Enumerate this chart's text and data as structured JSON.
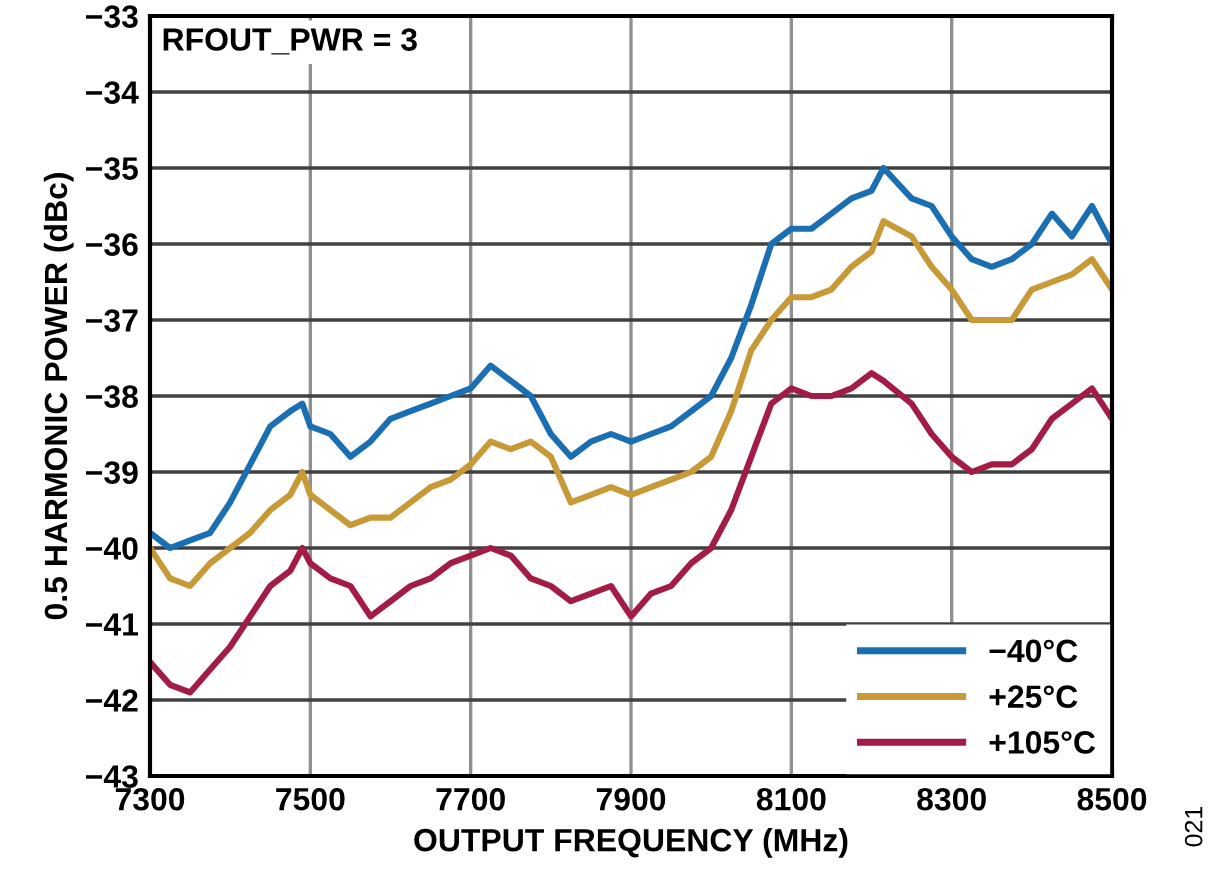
{
  "chart_data": {
    "type": "line",
    "x": [
      7300,
      7325,
      7350,
      7375,
      7400,
      7425,
      7450,
      7475,
      7490,
      7500,
      7525,
      7550,
      7575,
      7600,
      7625,
      7650,
      7675,
      7700,
      7725,
      7750,
      7775,
      7800,
      7825,
      7850,
      7875,
      7900,
      7925,
      7950,
      7975,
      8000,
      8025,
      8050,
      8075,
      8100,
      8125,
      8150,
      8175,
      8200,
      8215,
      8250,
      8275,
      8300,
      8325,
      8350,
      8375,
      8400,
      8425,
      8450,
      8475,
      8500
    ],
    "series": [
      {
        "name": "−40°C",
        "color": "#1a6fb3",
        "values": [
          -39.8,
          -40.0,
          -39.9,
          -39.8,
          -39.4,
          -38.9,
          -38.4,
          -38.2,
          -38.1,
          -38.4,
          -38.5,
          -38.8,
          -38.6,
          -38.3,
          -38.2,
          -38.1,
          -38.0,
          -37.9,
          -37.6,
          -37.8,
          -38.0,
          -38.5,
          -38.8,
          -38.6,
          -38.5,
          -38.6,
          -38.5,
          -38.4,
          -38.2,
          -38.0,
          -37.5,
          -36.8,
          -36.0,
          -35.8,
          -35.8,
          -35.6,
          -35.4,
          -35.3,
          -35.0,
          -35.4,
          -35.5,
          -35.9,
          -36.2,
          -36.3,
          -36.2,
          -36.0,
          -35.6,
          -35.9,
          -35.5,
          -36.0
        ]
      },
      {
        "name": "+25°C",
        "color": "#c79a37",
        "values": [
          -40.0,
          -40.4,
          -40.5,
          -40.2,
          -40.0,
          -39.8,
          -39.5,
          -39.3,
          -39.0,
          -39.3,
          -39.5,
          -39.7,
          -39.6,
          -39.6,
          -39.4,
          -39.2,
          -39.1,
          -38.9,
          -38.6,
          -38.7,
          -38.6,
          -38.8,
          -39.4,
          -39.3,
          -39.2,
          -39.3,
          -39.2,
          -39.1,
          -39.0,
          -38.8,
          -38.2,
          -37.4,
          -37.0,
          -36.7,
          -36.7,
          -36.6,
          -36.3,
          -36.1,
          -35.7,
          -35.9,
          -36.3,
          -36.6,
          -37.0,
          -37.0,
          -37.0,
          -36.6,
          -36.5,
          -36.4,
          -36.2,
          -36.6
        ]
      },
      {
        "name": "+105°C",
        "color": "#a31c45",
        "values": [
          -41.5,
          -41.8,
          -41.9,
          -41.6,
          -41.3,
          -40.9,
          -40.5,
          -40.3,
          -40.0,
          -40.2,
          -40.4,
          -40.5,
          -40.9,
          -40.7,
          -40.5,
          -40.4,
          -40.2,
          -40.1,
          -40.0,
          -40.1,
          -40.4,
          -40.5,
          -40.7,
          -40.6,
          -40.5,
          -40.9,
          -40.6,
          -40.5,
          -40.2,
          -40.0,
          -39.5,
          -38.8,
          -38.1,
          -37.9,
          -38.0,
          -38.0,
          -37.9,
          -37.7,
          -37.8,
          -38.1,
          -38.5,
          -38.8,
          -39.0,
          -38.9,
          -38.9,
          -38.7,
          -38.3,
          -38.1,
          -37.9,
          -38.3
        ]
      }
    ],
    "xlabel": "OUTPUT FREQUENCY (MHz)",
    "ylabel": "0.5 HARMONIC POWER (dBc)",
    "xlim": [
      7300,
      8500
    ],
    "xticks": [
      7300,
      7500,
      7700,
      7900,
      8100,
      8300,
      8500
    ],
    "ylim": [
      -43,
      -33
    ],
    "yticks": [
      {
        "value": -43,
        "label": "−43"
      },
      {
        "value": -42,
        "label": "−42"
      },
      {
        "value": -41,
        "label": "−41"
      },
      {
        "value": -40,
        "label": "−40"
      },
      {
        "value": -39,
        "label": "−39"
      },
      {
        "value": -38,
        "label": "−38"
      },
      {
        "value": -37,
        "label": "−37"
      },
      {
        "value": -36,
        "label": "−36"
      },
      {
        "value": -35,
        "label": "−35"
      },
      {
        "value": -34,
        "label": "−34"
      },
      {
        "value": -33,
        "label": "−33"
      }
    ],
    "grid": true,
    "legend": "bottom right",
    "marker": "none",
    "line_style": "solid",
    "annotations": [
      "RFOUT_PWR = 3",
      "021"
    ]
  }
}
